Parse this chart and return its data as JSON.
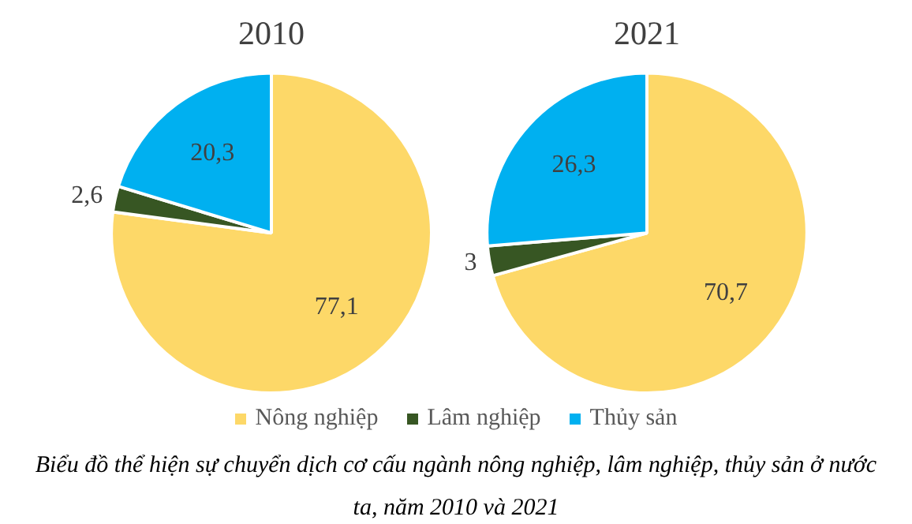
{
  "chart_data": [
    {
      "type": "pie",
      "title": "2010",
      "categories": [
        "Nông nghiệp",
        "Lâm nghiệp",
        "Thủy sản"
      ],
      "values": [
        77.1,
        2.6,
        20.3
      ],
      "value_labels": [
        "77,1",
        "2,6",
        "20,3"
      ],
      "colors": [
        "#fdd868",
        "#375623",
        "#00b0f0"
      ],
      "legend": "bottom",
      "annotations": [
        "Biểu đồ thể hiện sự chuyển dịch cơ cấu ngành nông nghiệp, lâm nghiệp, thủy sản ở nước ta, năm 2010 và 2021"
      ]
    },
    {
      "type": "pie",
      "title": "2021",
      "categories": [
        null,
        null,
        null
      ],
      "values": [
        70.7,
        3,
        26.3
      ],
      "value_labels": [
        "70,7",
        "3",
        "26,3"
      ],
      "colors": [
        "#fdd868",
        "#375623",
        "#00b0f0"
      ]
    }
  ]
}
